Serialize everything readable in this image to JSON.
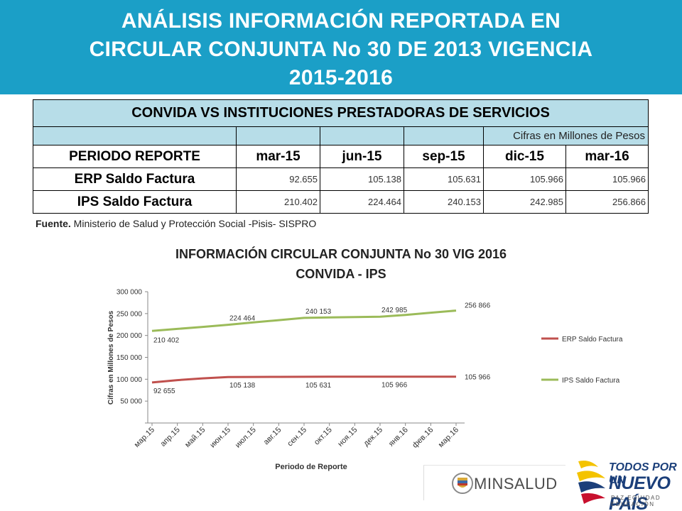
{
  "header": {
    "title_lines": [
      "ANÁLISIS INFORMACIÓN REPORTADA EN",
      "CIRCULAR CONJUNTA No 30 DE 2013 VIGENCIA",
      "2015-2016"
    ]
  },
  "table": {
    "title": "CONVIDA VS INSTITUCIONES PRESTADORAS DE SERVICIOS",
    "units": "Cifras en Millones de Pesos",
    "first_col_header": "PERIODO REPORTE",
    "periods": [
      "mar-15",
      "jun-15",
      "sep-15",
      "dic-15",
      "mar-16"
    ],
    "rows": [
      {
        "label": "ERP Saldo Factura",
        "values": [
          "92.655",
          "105.138",
          "105.631",
          "105.966",
          "105.966"
        ]
      },
      {
        "label": "IPS Saldo Factura",
        "values": [
          "210.402",
          "224.464",
          "240.153",
          "242.985",
          "256.866"
        ]
      }
    ]
  },
  "source": {
    "label": "Fuente.",
    "text": "Ministerio de Salud y Protección Social -Pisis- SISPRO"
  },
  "chart_data": {
    "type": "line",
    "title_lines": [
      "INFORMACIÓN CIRCULAR CONJUNTA No 30 VIG 2016",
      "CONVIDA - IPS"
    ],
    "xlabel": "Periodo de Reporte",
    "ylabel": "Cifras en Millones de Pesos",
    "categories": [
      "мар.15",
      "апр.15",
      "май.15",
      "июн.15",
      "июл.15",
      "авг.15",
      "сен.15",
      "окт.15",
      "ноя.15",
      "дек.15",
      "янв.16",
      "фев.16",
      "мар.16"
    ],
    "ylim": [
      0,
      300000
    ],
    "y_ticks": [
      0,
      50000,
      100000,
      150000,
      200000,
      250000,
      300000
    ],
    "y_tick_labels": [
      "",
      "50 000",
      "100 000",
      "150 000",
      "200 000",
      "250 000",
      "300 000"
    ],
    "grid": false,
    "legend_position": "right",
    "series": [
      {
        "name": "ERP Saldo Factura",
        "color": "#c0504d",
        "values": [
          92655,
          98000,
          102000,
          105138,
          105300,
          105450,
          105631,
          105750,
          105850,
          105966,
          105966,
          105966,
          105966
        ],
        "labels": [
          {
            "index": 0,
            "text": "92 655"
          },
          {
            "index": 3,
            "text": "105 138"
          },
          {
            "index": 6,
            "text": "105 631"
          },
          {
            "index": 9,
            "text": "105 966"
          },
          {
            "index": 12,
            "text": "105 966"
          }
        ]
      },
      {
        "name": "IPS Saldo Factura",
        "color": "#9bbb59",
        "values": [
          210402,
          215000,
          219500,
          224464,
          230000,
          235000,
          240153,
          241100,
          242000,
          242985,
          247000,
          252000,
          256866
        ],
        "labels": [
          {
            "index": 0,
            "text": "210 402"
          },
          {
            "index": 3,
            "text": "224 464"
          },
          {
            "index": 6,
            "text": "240 153"
          },
          {
            "index": 9,
            "text": "242 985"
          },
          {
            "index": 12,
            "text": "256 866"
          }
        ]
      }
    ]
  },
  "logos": {
    "minsalud": "MINSALUD",
    "tpun_line1": "TODOS POR UN",
    "tpun_line2": "NUEVO PAÍS",
    "tpun_line3": "PAZ  EQUIDAD  EDUCACIÓN"
  }
}
